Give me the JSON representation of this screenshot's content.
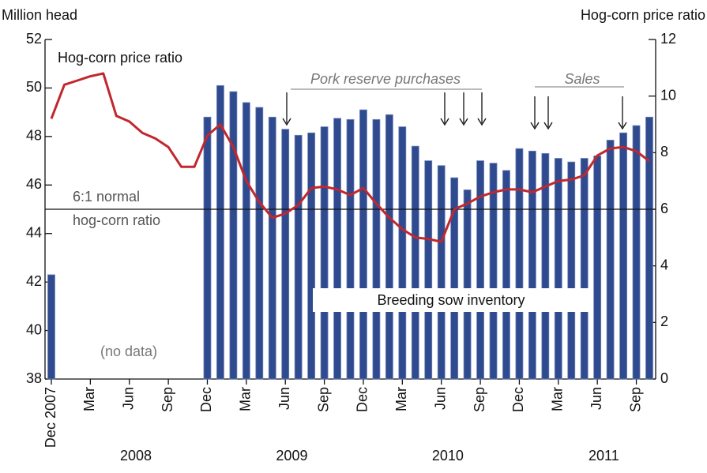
{
  "chart_data": {
    "type": "bar_line",
    "y_axis_title": "Million head",
    "y2_axis_title": "Hog-corn price ratio",
    "categories": [
      "Dec 2007",
      null,
      null,
      "Mar",
      null,
      null,
      "Jun",
      null,
      null,
      "Sep",
      null,
      null,
      "Dec",
      null,
      null,
      "Mar",
      null,
      null,
      "Jun",
      null,
      null,
      "Sep",
      null,
      null,
      "Dec",
      null,
      null,
      "Mar",
      null,
      null,
      "Jun",
      null,
      null,
      "Sep",
      null,
      null,
      "Dec",
      null,
      null,
      "Mar",
      null,
      null,
      "Jun",
      null,
      null,
      "Sep",
      null
    ],
    "year_labels": [
      "2008",
      "2009",
      "2010",
      "2011"
    ],
    "series": [
      {
        "name": "Breeding sow inventory",
        "type": "bar",
        "color": "#2f4a8e",
        "values": [
          42.3,
          null,
          null,
          null,
          null,
          null,
          null,
          null,
          null,
          null,
          null,
          null,
          48.8,
          50.1,
          49.85,
          49.4,
          49.2,
          48.8,
          48.3,
          48.05,
          48.15,
          48.4,
          48.75,
          48.7,
          49.1,
          48.7,
          48.9,
          48.4,
          47.6,
          47.0,
          46.8,
          46.3,
          45.8,
          47.0,
          46.9,
          46.6,
          47.5,
          47.4,
          47.3,
          47.1,
          46.95,
          47.1,
          47.2,
          47.85,
          48.15,
          48.45,
          48.8
        ]
      },
      {
        "name": "Hog-corn price ratio",
        "type": "line",
        "axis": "y2",
        "color": "#c1272d",
        "values": [
          9.2,
          10.4,
          10.55,
          10.7,
          10.8,
          9.3,
          9.1,
          8.7,
          8.5,
          8.2,
          7.5,
          7.5,
          8.6,
          9.0,
          8.2,
          7.0,
          6.25,
          5.7,
          5.85,
          6.15,
          6.75,
          6.8,
          6.7,
          6.5,
          6.75,
          6.2,
          5.7,
          5.3,
          5.0,
          4.95,
          4.85,
          6.0,
          6.2,
          6.45,
          6.6,
          6.7,
          6.7,
          6.6,
          6.8,
          7.0,
          7.05,
          7.2,
          7.9,
          8.15,
          8.2,
          8.05,
          7.7
        ]
      }
    ],
    "reference_line": {
      "value": 6,
      "axis": "y2",
      "label_lines": [
        "6:1 normal",
        "hog-corn ratio"
      ]
    },
    "annotations": [
      "Pork reserve purchases",
      "Sales",
      "(no data)"
    ],
    "ylim": [
      38,
      52
    ],
    "yticks": [
      38,
      40,
      42,
      44,
      46,
      48,
      50,
      52
    ],
    "y2lim": [
      0,
      12
    ],
    "y2ticks": [
      0,
      2,
      4,
      6,
      8,
      10,
      12
    ]
  }
}
